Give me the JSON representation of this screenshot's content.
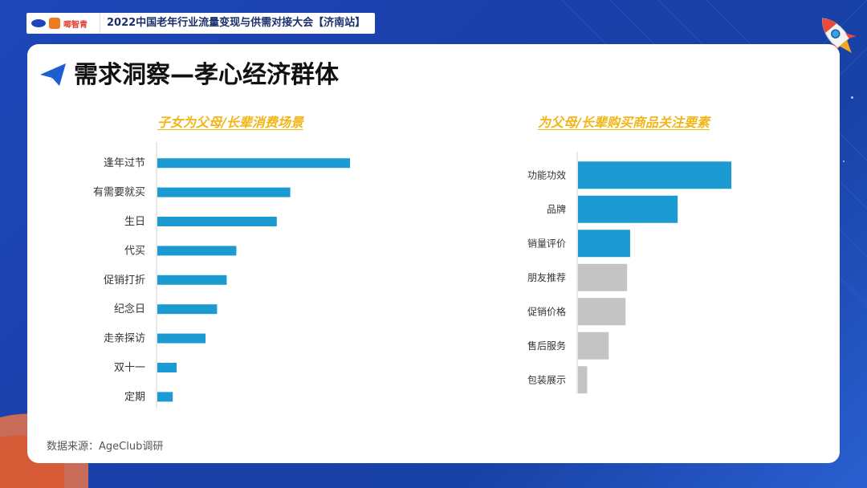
{
  "header": {
    "logo_text": "唧智青",
    "event_title": "2022中国老年行业流量变现与供需对接大会【济南站】"
  },
  "page": {
    "title": "需求洞察—孝心经济群体",
    "source": "数据来源：AgeClub调研"
  },
  "colors": {
    "background": "#1d47b8",
    "accent_bar": "#1b9bd1",
    "muted_bar": "#c4c4c4",
    "chart_title": "#f2b619"
  },
  "chart_data": [
    {
      "type": "bar",
      "orientation": "horizontal",
      "title": "子女为父母/长辈消费场景",
      "categories": [
        "逢年过节",
        "有需要就买",
        "生日",
        "代买",
        "促销打折",
        "纪念日",
        "走亲探访",
        "双十一",
        "定期"
      ],
      "values": [
        100,
        69,
        62,
        41,
        36,
        31,
        25,
        10,
        8
      ],
      "bar_colors": [
        "#1b9bd1",
        "#1b9bd1",
        "#1b9bd1",
        "#1b9bd1",
        "#1b9bd1",
        "#1b9bd1",
        "#1b9bd1",
        "#1b9bd1",
        "#1b9bd1"
      ],
      "xlim": [
        0,
        100
      ],
      "grid": false
    },
    {
      "type": "bar",
      "orientation": "horizontal",
      "title": "为父母/长辈购买商品关注要素",
      "categories": [
        "功能功效",
        "品牌",
        "销量评价",
        "朋友推荐",
        "促销价格",
        "售后服务",
        "包装展示"
      ],
      "values": [
        100,
        65,
        34,
        32,
        31,
        20,
        6
      ],
      "bar_colors": [
        "#1b9bd1",
        "#1b9bd1",
        "#1b9bd1",
        "#c4c4c4",
        "#c4c4c4",
        "#c4c4c4",
        "#c4c4c4"
      ],
      "xlim": [
        0,
        100
      ],
      "grid": false
    }
  ]
}
